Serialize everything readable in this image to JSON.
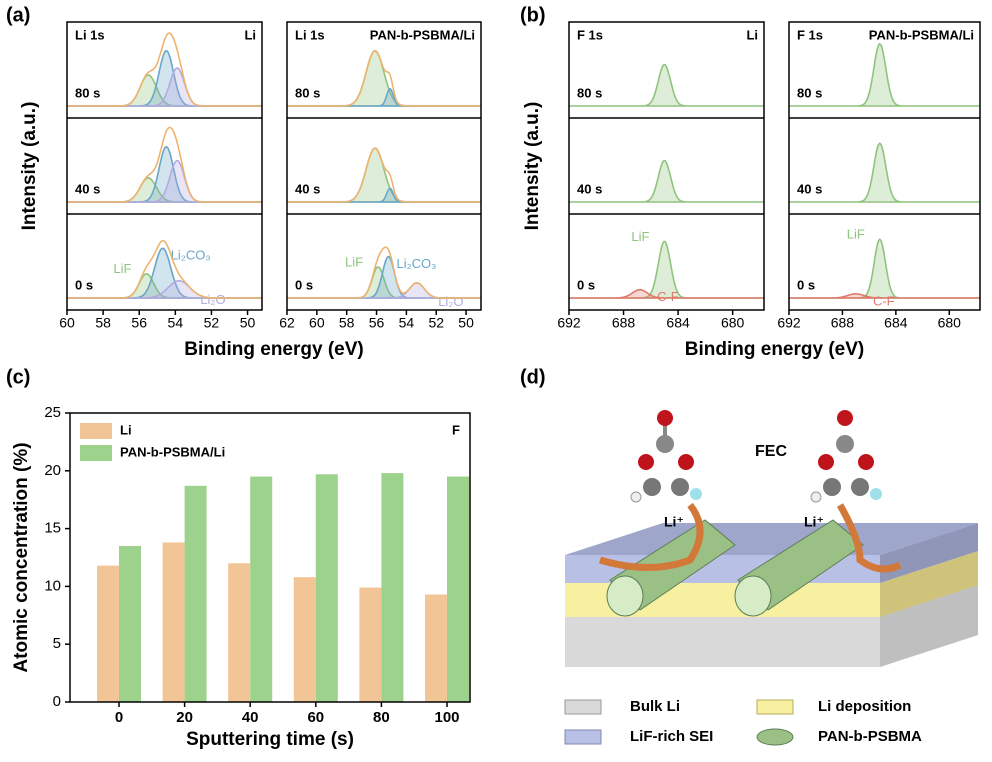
{
  "chart_data": [
    {
      "type": "spectrum",
      "panel": "(a)",
      "xlabel": "Binding energy (eV)",
      "ylabel": "Intensity (a.u.)",
      "envelope_color": "#f0b36e",
      "subplots": [
        {
          "title": "Li 1s",
          "sample": "Li",
          "xlim": [
            60,
            49.2
          ],
          "xticks": [
            60,
            58,
            56,
            54,
            52,
            50
          ],
          "rows": [
            {
              "label": "80 s",
              "peaks": [
                {
                  "center": 55.5,
                  "height": 0.45,
                  "width": 0.45,
                  "color": "#8fc47e"
                },
                {
                  "center": 54.5,
                  "height": 0.8,
                  "width": 0.4,
                  "color": "#6aa6c8"
                },
                {
                  "center": 53.9,
                  "height": 0.55,
                  "width": 0.4,
                  "color": "#b4aae0"
                }
              ]
            },
            {
              "label": "40 s",
              "peaks": [
                {
                  "center": 55.5,
                  "height": 0.35,
                  "width": 0.45,
                  "color": "#8fc47e"
                },
                {
                  "center": 54.5,
                  "height": 0.8,
                  "width": 0.4,
                  "color": "#6aa6c8"
                },
                {
                  "center": 53.9,
                  "height": 0.6,
                  "width": 0.4,
                  "color": "#b4aae0"
                }
              ]
            },
            {
              "label": "0 s",
              "peaks": [
                {
                  "name": "LiF",
                  "center": 55.6,
                  "height": 0.35,
                  "width": 0.4,
                  "color": "#8fc47e"
                },
                {
                  "name": "Li₂CO₃",
                  "center": 54.7,
                  "height": 0.72,
                  "width": 0.45,
                  "color": "#6aa6c8"
                },
                {
                  "name": "Li₂O",
                  "center": 53.8,
                  "height": 0.25,
                  "width": 0.6,
                  "color": "#b4aae0"
                }
              ]
            }
          ]
        },
        {
          "title": "Li 1s",
          "sample": "PAN-b-PSBMA/Li",
          "xlim": [
            62,
            49
          ],
          "xticks": [
            62,
            60,
            58,
            56,
            54,
            52,
            50
          ],
          "rows": [
            {
              "label": "80 s",
              "peaks": [
                {
                  "center": 56.1,
                  "height": 0.8,
                  "width": 0.6,
                  "color": "#8fc47e"
                },
                {
                  "center": 55.1,
                  "height": 0.25,
                  "width": 0.22,
                  "color": "#6aa6c8"
                }
              ]
            },
            {
              "label": "40 s",
              "peaks": [
                {
                  "center": 56.1,
                  "height": 0.78,
                  "width": 0.6,
                  "color": "#8fc47e"
                },
                {
                  "center": 55.1,
                  "height": 0.2,
                  "width": 0.22,
                  "color": "#6aa6c8"
                }
              ]
            },
            {
              "label": "0 s",
              "peaks": [
                {
                  "name": "LiF",
                  "center": 55.9,
                  "height": 0.45,
                  "width": 0.4,
                  "color": "#8fc47e"
                },
                {
                  "name": "Li₂CO₃",
                  "center": 55.2,
                  "height": 0.6,
                  "width": 0.4,
                  "color": "#6aa6c8"
                },
                {
                  "name": "Li₂O",
                  "center": 53.3,
                  "height": 0.22,
                  "width": 0.5,
                  "color": "#b4aae0"
                }
              ]
            }
          ]
        }
      ]
    },
    {
      "type": "spectrum",
      "panel": "(b)",
      "xlabel": "Binding energy (eV)",
      "ylabel": "Intensity (a.u.)",
      "subplots": [
        {
          "title": "F 1s",
          "sample": "Li",
          "xlim": [
            692,
            677.7
          ],
          "xticks": [
            692,
            688,
            684,
            680
          ],
          "rows": [
            {
              "label": "80 s",
              "peaks": [
                {
                  "center": 685,
                  "height": 0.6,
                  "width": 0.45,
                  "color": "#8fc47e"
                }
              ]
            },
            {
              "label": "40 s",
              "peaks": [
                {
                  "center": 685,
                  "height": 0.6,
                  "width": 0.45,
                  "color": "#8fc47e"
                }
              ]
            },
            {
              "label": "0 s",
              "peaks": [
                {
                  "name": "LiF",
                  "center": 685,
                  "height": 0.82,
                  "width": 0.45,
                  "color": "#8fc47e"
                },
                {
                  "name": "C-F",
                  "center": 686.8,
                  "height": 0.12,
                  "width": 0.55,
                  "color": "#e07a6d"
                }
              ]
            }
          ]
        },
        {
          "title": "F 1s",
          "sample": "PAN-b-PSBMA/Li",
          "xlim": [
            692,
            677.7
          ],
          "xticks": [
            692,
            688,
            684,
            680
          ],
          "rows": [
            {
              "label": "80 s",
              "peaks": [
                {
                  "center": 685.2,
                  "height": 0.9,
                  "width": 0.45,
                  "color": "#8fc47e"
                }
              ]
            },
            {
              "label": "40 s",
              "peaks": [
                {
                  "center": 685.2,
                  "height": 0.85,
                  "width": 0.45,
                  "color": "#8fc47e"
                }
              ]
            },
            {
              "label": "0 s",
              "peaks": [
                {
                  "name": "LiF",
                  "center": 685.2,
                  "height": 0.85,
                  "width": 0.42,
                  "color": "#8fc47e"
                },
                {
                  "name": "C-F",
                  "center": 687,
                  "height": 0.06,
                  "width": 0.6,
                  "color": "#e07a6d"
                }
              ]
            }
          ]
        }
      ]
    },
    {
      "type": "bar",
      "panel": "(c)",
      "xlabel": "Sputtering time (s)",
      "ylabel": "Atomic concentration (%)",
      "annotation": "F",
      "categories": [
        "0",
        "20",
        "40",
        "60",
        "80",
        "100"
      ],
      "series": [
        {
          "name": "Li",
          "color": "#f2c597",
          "values": [
            11.8,
            13.8,
            12,
            10.8,
            9.9,
            9.3
          ]
        },
        {
          "name": "PAN-b-PSBMA/Li",
          "color": "#9dd28c",
          "values": [
            13.5,
            18.7,
            19.5,
            19.7,
            19.8,
            19.5
          ]
        }
      ],
      "ylim": [
        0,
        25
      ],
      "yticks": [
        0,
        5,
        10,
        15,
        20,
        25
      ],
      "legend": "top-left"
    }
  ],
  "diagram": {
    "panel": "(d)",
    "molecule": "FEC",
    "ion_labels": [
      "Li⁺",
      "Li⁺"
    ],
    "legend": [
      "Bulk Li",
      "Li deposition",
      "LiF-rich SEI",
      "PAN-b-PSBMA"
    ]
  }
}
